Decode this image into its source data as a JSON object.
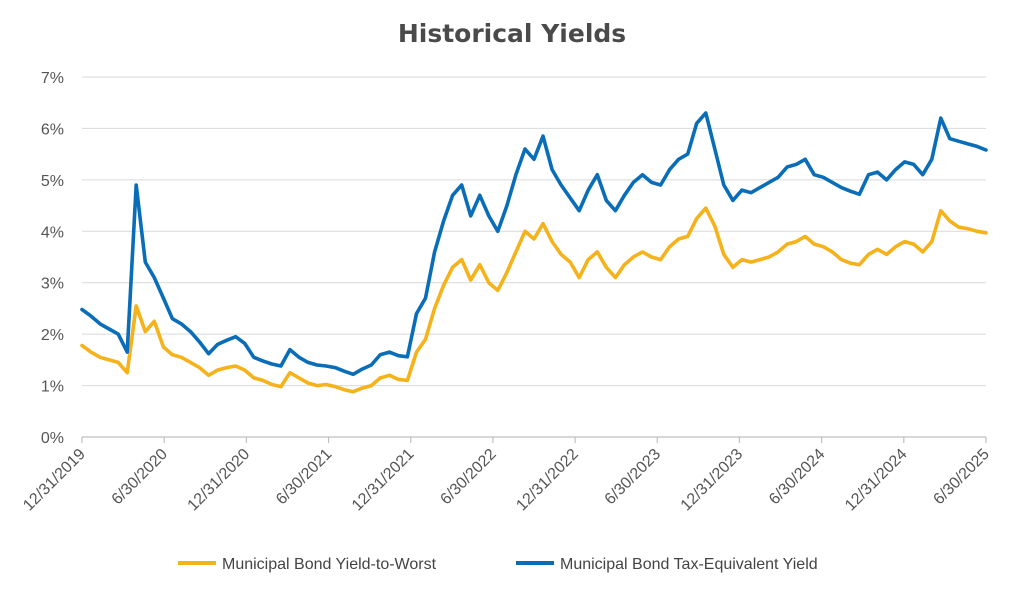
{
  "chart_data": {
    "type": "line",
    "title": "Historical Yields",
    "xlabel": "",
    "ylabel": "",
    "ylim": [
      0,
      7
    ],
    "y_ticks": [
      "0%",
      "1%",
      "2%",
      "3%",
      "4%",
      "5%",
      "6%",
      "7%"
    ],
    "x_ticks": [
      "12/31/2019",
      "6/30/2020",
      "12/31/2020",
      "6/30/2021",
      "12/31/2021",
      "6/30/2022",
      "12/31/2022",
      "6/30/2023",
      "12/31/2023",
      "6/30/2024",
      "12/31/2024",
      "6/30/2025"
    ],
    "grid": true,
    "legend": "bottom",
    "series": [
      {
        "name": "Municipal Bond Yield-to-Worst",
        "color": "#F6B21B",
        "values": [
          1.78,
          1.65,
          1.55,
          1.5,
          1.45,
          1.25,
          2.55,
          2.05,
          2.25,
          1.75,
          1.6,
          1.55,
          1.45,
          1.35,
          1.2,
          1.3,
          1.35,
          1.38,
          1.3,
          1.15,
          1.1,
          1.02,
          0.98,
          1.25,
          1.15,
          1.05,
          1.0,
          1.02,
          0.98,
          0.92,
          0.88,
          0.95,
          1.0,
          1.15,
          1.2,
          1.12,
          1.1,
          1.65,
          1.9,
          2.5,
          2.95,
          3.3,
          3.45,
          3.05,
          3.35,
          3.0,
          2.85,
          3.2,
          3.6,
          4.0,
          3.85,
          4.15,
          3.8,
          3.55,
          3.4,
          3.1,
          3.45,
          3.6,
          3.3,
          3.1,
          3.35,
          3.5,
          3.6,
          3.5,
          3.45,
          3.7,
          3.85,
          3.9,
          4.25,
          4.45,
          4.1,
          3.55,
          3.3,
          3.45,
          3.4,
          3.45,
          3.5,
          3.6,
          3.75,
          3.8,
          3.9,
          3.75,
          3.7,
          3.6,
          3.45,
          3.38,
          3.35,
          3.55,
          3.65,
          3.55,
          3.7,
          3.8,
          3.75,
          3.6,
          3.8,
          4.4,
          4.2,
          4.08,
          4.05,
          4.0,
          3.97
        ]
      },
      {
        "name": "Municipal Bond Tax-Equivalent Yield",
        "color": "#0A6DB8",
        "values": [
          2.48,
          2.35,
          2.2,
          2.1,
          2.0,
          1.65,
          4.9,
          3.4,
          3.1,
          2.7,
          2.3,
          2.2,
          2.05,
          1.85,
          1.62,
          1.8,
          1.88,
          1.95,
          1.82,
          1.55,
          1.48,
          1.42,
          1.38,
          1.7,
          1.55,
          1.45,
          1.4,
          1.38,
          1.35,
          1.28,
          1.22,
          1.32,
          1.4,
          1.6,
          1.65,
          1.58,
          1.56,
          2.4,
          2.7,
          3.6,
          4.2,
          4.7,
          4.9,
          4.3,
          4.7,
          4.3,
          4.0,
          4.5,
          5.1,
          5.6,
          5.4,
          5.85,
          5.2,
          4.9,
          4.65,
          4.4,
          4.8,
          5.1,
          4.6,
          4.4,
          4.7,
          4.95,
          5.1,
          4.95,
          4.9,
          5.2,
          5.4,
          5.5,
          6.1,
          6.3,
          5.6,
          4.9,
          4.6,
          4.8,
          4.75,
          4.85,
          4.95,
          5.05,
          5.25,
          5.3,
          5.4,
          5.1,
          5.05,
          4.95,
          4.85,
          4.78,
          4.72,
          5.1,
          5.15,
          5.0,
          5.2,
          5.35,
          5.3,
          5.1,
          5.4,
          6.2,
          5.8,
          5.75,
          5.7,
          5.65,
          5.58
        ]
      }
    ]
  }
}
